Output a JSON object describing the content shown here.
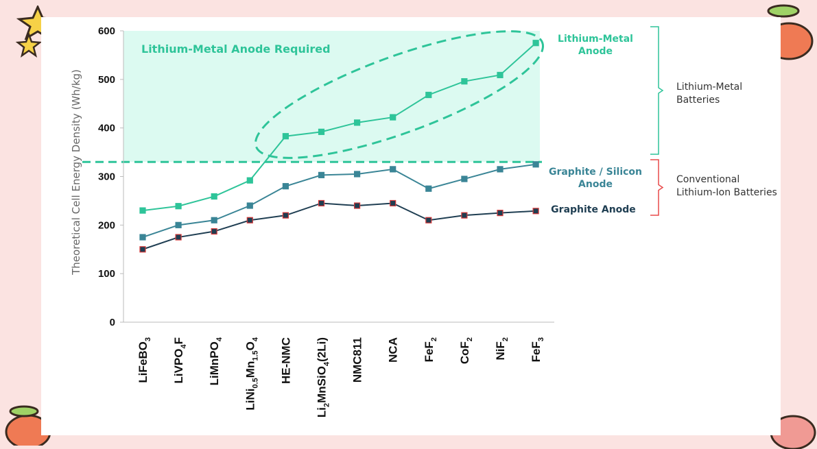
{
  "chart_data": {
    "type": "line",
    "ylabel": "Theoretical Cell Energy Density (Wh/kg)",
    "ylim": [
      0,
      600
    ],
    "yticks": [
      "0",
      "100",
      "200",
      "300",
      "400",
      "500",
      "600"
    ],
    "categories": [
      {
        "base": "LiFeBO",
        "parts": [
          [
            "LiFeBO",
            false
          ],
          [
            "3",
            true
          ]
        ]
      },
      {
        "base": "LiVPO4F",
        "parts": [
          [
            "LiVPO",
            false
          ],
          [
            "4",
            true
          ],
          [
            "F",
            false
          ]
        ]
      },
      {
        "base": "LiMnPO4",
        "parts": [
          [
            "LiMnPO",
            false
          ],
          [
            "4",
            true
          ]
        ]
      },
      {
        "base": "LiNi0.5Mn1.5O4",
        "parts": [
          [
            "LiNi",
            false
          ],
          [
            "0.5",
            true
          ],
          [
            "Mn",
            false
          ],
          [
            "1.5",
            true
          ],
          [
            "O",
            false
          ],
          [
            "4",
            true
          ]
        ]
      },
      {
        "base": "HE-NMC",
        "parts": [
          [
            "HE-NMC",
            false
          ]
        ]
      },
      {
        "base": "Li2MnSiO4(2Li)",
        "parts": [
          [
            "Li",
            false
          ],
          [
            "2",
            true
          ],
          [
            "MnSiO",
            false
          ],
          [
            "4",
            true
          ],
          [
            "(2Li)",
            false
          ]
        ]
      },
      {
        "base": "NMC811",
        "parts": [
          [
            "NMC811",
            false
          ]
        ]
      },
      {
        "base": "NCA",
        "parts": [
          [
            "NCA",
            false
          ]
        ]
      },
      {
        "base": "FeF2",
        "parts": [
          [
            "FeF",
            false
          ],
          [
            "2",
            true
          ]
        ]
      },
      {
        "base": "CoF2",
        "parts": [
          [
            "CoF",
            false
          ],
          [
            "2",
            true
          ]
        ]
      },
      {
        "base": "NiF2",
        "parts": [
          [
            "NiF",
            false
          ],
          [
            "2",
            true
          ]
        ]
      },
      {
        "base": "FeF3",
        "parts": [
          [
            "FeF",
            false
          ],
          [
            "3",
            true
          ]
        ]
      }
    ],
    "series": [
      {
        "name": "Lithium-Metal Anode",
        "color": "#2ec499",
        "marker_edge": "#2ec499",
        "values": [
          230,
          239,
          259,
          292,
          383,
          392,
          411,
          422,
          468,
          496,
          509,
          575
        ]
      },
      {
        "name": "Graphite / Silicon Anode",
        "color": "#3a8596",
        "marker_edge": "#3a8596",
        "values": [
          175,
          200,
          210,
          240,
          280,
          303,
          305,
          315,
          275,
          295,
          315,
          325
        ]
      },
      {
        "name": "Graphite Anode",
        "color": "#1f3e52",
        "marker_edge": "#d63a3a",
        "values": [
          150,
          175,
          187,
          210,
          220,
          245,
          240,
          245,
          210,
          220,
          225,
          229
        ]
      }
    ],
    "threshold": 330,
    "annotations": {
      "zone_label": "Lithium-Metal Anode Required",
      "lm_label": [
        "Lithium-Metal",
        "Anode"
      ],
      "gs_label": [
        "Graphite / Silicon",
        "Anode"
      ],
      "g_label": [
        "Graphite Anode"
      ],
      "group_lm": [
        "Lithium-Metal",
        "Batteries"
      ],
      "group_conv": [
        "Conventional",
        "Lithium-Ion Batteries"
      ]
    },
    "colors": {
      "zone_fill": "#dcfaf1",
      "zone_text": "#2ec499",
      "bracket_top": "#2ec499",
      "bracket_bottom": "#e84a4a"
    },
    "grid": false
  }
}
